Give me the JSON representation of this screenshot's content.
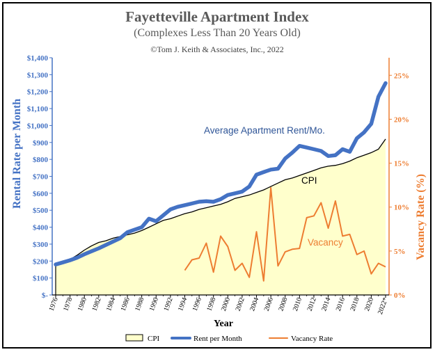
{
  "chart_data": {
    "type": "area",
    "title": "Fayetteville Apartment Index",
    "subtitle": "(Complexes Less Than 20 Years Old)",
    "copyright": "©Tom J. Keith & Associates, Inc., 2022",
    "xlabel": "Year",
    "ylabel_left": "Rental Rate per Month",
    "ylabel_right": "Vacancy Rate (%)",
    "ylim_left": [
      0,
      1400
    ],
    "ylim_right": [
      0,
      27
    ],
    "yticks_left": [
      0,
      100,
      200,
      300,
      400,
      500,
      600,
      700,
      800,
      900,
      1000,
      1100,
      1200,
      1300,
      1400
    ],
    "yticklabels_left": [
      "$-",
      "$100",
      "$200",
      "$300",
      "$400",
      "$500",
      "$600",
      "$700",
      "$800",
      "$900",
      "$1,000",
      "$1,100",
      "$1,200",
      "$1,300",
      "$1,400"
    ],
    "yticks_right": [
      0,
      5,
      10,
      15,
      20,
      25
    ],
    "yticklabels_right": [
      "0%",
      "5%",
      "10%",
      "15%",
      "20%",
      "25%"
    ],
    "xticklabels": [
      "1976",
      "1978",
      "1980",
      "1982",
      "1984",
      "1986",
      "1988",
      "1990",
      "1992",
      "1994",
      "1996",
      "1998",
      "2000",
      "2002",
      "2004",
      "2006",
      "2008",
      "2010",
      "2012",
      "2014",
      "2016",
      "2018",
      "2020",
      "2022*"
    ],
    "x": [
      1976,
      1977,
      1978,
      1979,
      1980,
      1981,
      1982,
      1983,
      1984,
      1985,
      1986,
      1987,
      1988,
      1989,
      1990,
      1991,
      1992,
      1993,
      1994,
      1995,
      1996,
      1997,
      1998,
      1999,
      2000,
      2001,
      2002,
      2003,
      2004,
      2005,
      2006,
      2007,
      2008,
      2009,
      2010,
      2011,
      2012,
      2013,
      2014,
      2015,
      2016,
      2017,
      2018,
      2019,
      2020,
      2021,
      2022
    ],
    "series": [
      {
        "name": "CPI",
        "kind": "area",
        "axis": "left",
        "color": "#FFFFCC",
        "edge_color": "#000000",
        "values": [
          175,
          190,
          210,
          235,
          265,
          290,
          310,
          320,
          335,
          345,
          355,
          365,
          380,
          400,
          420,
          440,
          450,
          465,
          480,
          490,
          505,
          515,
          525,
          535,
          550,
          570,
          580,
          590,
          605,
          620,
          640,
          660,
          680,
          690,
          705,
          720,
          735,
          750,
          760,
          765,
          775,
          790,
          810,
          825,
          840,
          860,
          920
        ]
      },
      {
        "name": "Rent per Month",
        "kind": "line",
        "axis": "left",
        "color": "#4472C4",
        "values": [
          180,
          192,
          205,
          220,
          240,
          258,
          275,
          295,
          315,
          335,
          370,
          385,
          400,
          450,
          435,
          470,
          505,
          520,
          530,
          540,
          550,
          553,
          550,
          565,
          590,
          600,
          610,
          640,
          710,
          725,
          740,
          745,
          805,
          840,
          880,
          870,
          860,
          850,
          820,
          825,
          860,
          845,
          925,
          960,
          1010,
          1170,
          1250
        ]
      },
      {
        "name": "Vacancy Rate",
        "kind": "line",
        "axis": "right",
        "color": "#ED7D31",
        "x": [
          1994,
          1995,
          1996,
          1997,
          1998,
          1999,
          2000,
          2001,
          2002,
          2003,
          2004,
          2005,
          2006,
          2007,
          2008,
          2009,
          2010,
          2011,
          2012,
          2013,
          2014,
          2015,
          2016,
          2017,
          2018,
          2019,
          2020,
          2021,
          2022
        ],
        "values": [
          2.8,
          4.0,
          4.2,
          5.9,
          2.6,
          6.7,
          5.5,
          2.8,
          3.6,
          2.0,
          7.2,
          1.6,
          12.2,
          3.3,
          4.9,
          5.2,
          5.3,
          8.8,
          9.0,
          10.5,
          7.6,
          10.7,
          6.7,
          6.9,
          4.6,
          5.0,
          2.4,
          3.6,
          3.2
        ]
      }
    ],
    "annotations": {
      "rent": "Average Apartment Rent/Mo.",
      "cpi": "CPI",
      "vacancy": "Vacancy"
    },
    "legend": {
      "position": "bottom",
      "items": [
        {
          "label": "CPI",
          "kind": "area",
          "color": "#FFFFCC"
        },
        {
          "label": "Rent per Month",
          "kind": "line",
          "color": "#4472C4"
        },
        {
          "label": "Vacancy Rate",
          "kind": "line",
          "color": "#ED7D31"
        }
      ]
    },
    "grid": false
  }
}
